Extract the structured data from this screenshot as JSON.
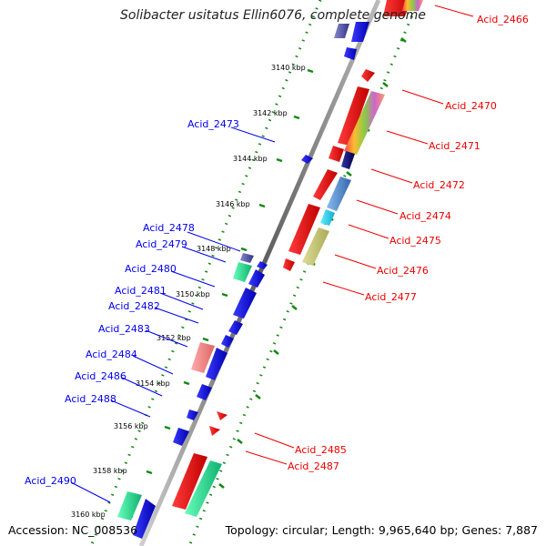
{
  "title": "Solibacter usitatus Ellin6076, complete genome",
  "accession": "Accession: NC_008536",
  "summary": "Topology: circular; Length: 9,965,640 bp; Genes: 7,887",
  "scale_labels": [
    "3140 kbp",
    "3142 kbp",
    "3144 kbp",
    "3146 kbp",
    "3148 kbp",
    "3150 kbp",
    "3152 kbp",
    "3154 kbp",
    "3156 kbp",
    "3158 kbp",
    "3160 kbp"
  ],
  "left_genes": [
    "Acid_2473",
    "Acid_2478",
    "Acid_2479",
    "Acid_2480",
    "Acid_2481",
    "Acid_2482",
    "Acid_2483",
    "Acid_2484",
    "Acid_2486",
    "Acid_2488",
    "Acid_2490"
  ],
  "right_genes": [
    "Acid_2466",
    "Acid_2470",
    "Acid_2471",
    "Acid_2472",
    "Acid_2474",
    "Acid_2475",
    "Acid_2476",
    "Acid_2477",
    "Acid_2485",
    "Acid_2487"
  ],
  "colors": {
    "reverse_strand": "#0000ee",
    "forward_strand": "#ee0000",
    "backbone": "#888888",
    "ticks": "#118811",
    "rna": "#22dd88"
  }
}
